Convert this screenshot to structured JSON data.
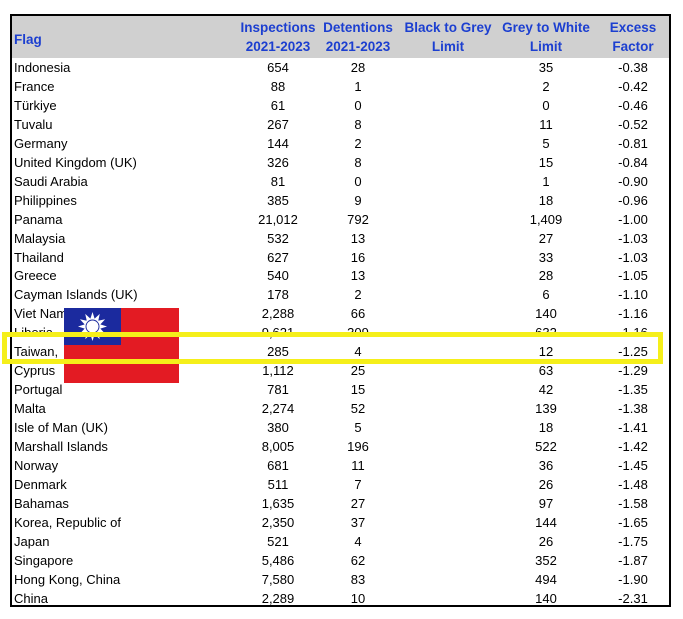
{
  "headers": {
    "flag": "Flag",
    "inspections": [
      "Inspections",
      "2021-2023"
    ],
    "detentions": [
      "Detentions",
      "2021-2023"
    ],
    "black_to_grey": [
      "Black to Grey",
      "Limit"
    ],
    "grey_to_white": [
      "Grey to White",
      "Limit"
    ],
    "excess": [
      "Excess",
      "Factor"
    ]
  },
  "rows": [
    {
      "name": "Indonesia",
      "ins": "654",
      "det": "28",
      "btg": "",
      "gtw": "35",
      "exc": "-0.38"
    },
    {
      "name": "France",
      "ins": "88",
      "det": "1",
      "btg": "",
      "gtw": "2",
      "exc": "-0.42"
    },
    {
      "name": "Türkiye",
      "ins": "61",
      "det": "0",
      "btg": "",
      "gtw": "0",
      "exc": "-0.46"
    },
    {
      "name": "Tuvalu",
      "ins": "267",
      "det": "8",
      "btg": "",
      "gtw": "11",
      "exc": "-0.52"
    },
    {
      "name": "Germany",
      "ins": "144",
      "det": "2",
      "btg": "",
      "gtw": "5",
      "exc": "-0.81"
    },
    {
      "name": "United Kingdom (UK)",
      "ins": "326",
      "det": "8",
      "btg": "",
      "gtw": "15",
      "exc": "-0.84"
    },
    {
      "name": "Saudi Arabia",
      "ins": "81",
      "det": "0",
      "btg": "",
      "gtw": "1",
      "exc": "-0.90"
    },
    {
      "name": "Philippines",
      "ins": "385",
      "det": "9",
      "btg": "",
      "gtw": "18",
      "exc": "-0.96"
    },
    {
      "name": "Panama",
      "ins": "21,012",
      "det": "792",
      "btg": "",
      "gtw": "1,409",
      "exc": "-1.00"
    },
    {
      "name": "Malaysia",
      "ins": "532",
      "det": "13",
      "btg": "",
      "gtw": "27",
      "exc": "-1.03"
    },
    {
      "name": "Thailand",
      "ins": "627",
      "det": "16",
      "btg": "",
      "gtw": "33",
      "exc": "-1.03"
    },
    {
      "name": "Greece",
      "ins": "540",
      "det": "13",
      "btg": "",
      "gtw": "28",
      "exc": "-1.05"
    },
    {
      "name": "Cayman Islands (UK)",
      "ins": "178",
      "det": "2",
      "btg": "",
      "gtw": "6",
      "exc": "-1.10"
    },
    {
      "name": "Viet Nam",
      "ins": "2,288",
      "det": "66",
      "btg": "",
      "gtw": "140",
      "exc": "-1.16"
    },
    {
      "name": "Liberia",
      "ins": "9,621",
      "det": "309",
      "btg": "",
      "gtw": "632",
      "exc": "-1.16"
    },
    {
      "name": "Taiwan,",
      "ins": "285",
      "det": "4",
      "btg": "",
      "gtw": "12",
      "exc": "-1.25"
    },
    {
      "name": "Cyprus",
      "ins": "1,112",
      "det": "25",
      "btg": "",
      "gtw": "63",
      "exc": "-1.29"
    },
    {
      "name": "Portugal",
      "ins": "781",
      "det": "15",
      "btg": "",
      "gtw": "42",
      "exc": "-1.35"
    },
    {
      "name": "Malta",
      "ins": "2,274",
      "det": "52",
      "btg": "",
      "gtw": "139",
      "exc": "-1.38"
    },
    {
      "name": "Isle of Man (UK)",
      "ins": "380",
      "det": "5",
      "btg": "",
      "gtw": "18",
      "exc": "-1.41"
    },
    {
      "name": "Marshall Islands",
      "ins": "8,005",
      "det": "196",
      "btg": "",
      "gtw": "522",
      "exc": "-1.42"
    },
    {
      "name": "Norway",
      "ins": "681",
      "det": "11",
      "btg": "",
      "gtw": "36",
      "exc": "-1.45"
    },
    {
      "name": "Denmark",
      "ins": "511",
      "det": "7",
      "btg": "",
      "gtw": "26",
      "exc": "-1.48"
    },
    {
      "name": "Bahamas",
      "ins": "1,635",
      "det": "27",
      "btg": "",
      "gtw": "97",
      "exc": "-1.58"
    },
    {
      "name": "Korea, Republic of",
      "ins": "2,350",
      "det": "37",
      "btg": "",
      "gtw": "144",
      "exc": "-1.65"
    },
    {
      "name": "Japan",
      "ins": "521",
      "det": "4",
      "btg": "",
      "gtw": "26",
      "exc": "-1.75"
    },
    {
      "name": "Singapore",
      "ins": "5,486",
      "det": "62",
      "btg": "",
      "gtw": "352",
      "exc": "-1.87"
    },
    {
      "name": "Hong Kong, China",
      "ins": "7,580",
      "det": "83",
      "btg": "",
      "gtw": "494",
      "exc": "-1.90"
    },
    {
      "name": "China",
      "ins": "2,289",
      "det": "10",
      "btg": "",
      "gtw": "140",
      "exc": "-2.31"
    }
  ],
  "highlight_row": "Taiwan,",
  "colors": {
    "header_text": "#1c3fd0",
    "header_bg": "#d0d0d0",
    "highlight": "#f5ef1a",
    "flag_red": "#e31b23",
    "flag_blue": "#1b2a9e"
  },
  "overlay_icon": "taiwan-flag-icon"
}
